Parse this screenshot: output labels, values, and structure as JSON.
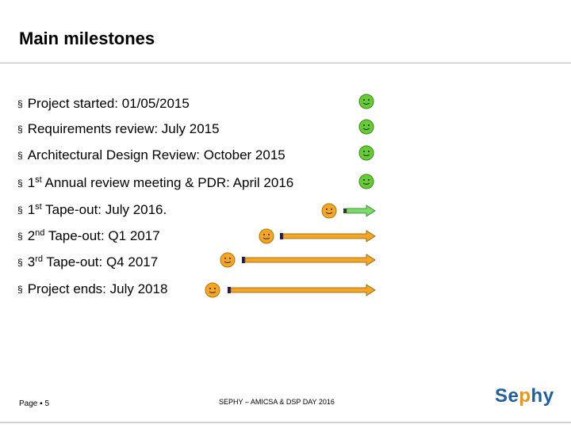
{
  "slide": {
    "title": "Main milestones",
    "bullet_marker": "§",
    "milestones": [
      {
        "text": "Project started: 01/05/2015",
        "status": "done"
      },
      {
        "text": "Requirements review: July 2015",
        "status": "done"
      },
      {
        "text": "Architectural Design Review: October 2015",
        "status": "done"
      },
      {
        "ordinal": "1",
        "suffix": "st",
        "rest": " Annual review meeting & PDR: April 2016",
        "status": "done"
      },
      {
        "ordinal": "1",
        "suffix": "st",
        "rest": " Tape-out: July 2016.",
        "status": "in progress"
      },
      {
        "ordinal": "2",
        "suffix": "nd",
        "rest": " Tape-out:  Q1 2017",
        "status": "planned"
      },
      {
        "ordinal": "3",
        "suffix": "rd",
        "rest": " Tape-out: Q4 2017",
        "status": "planned"
      },
      {
        "text": "Project ends: July 2018",
        "status": "planned"
      }
    ]
  },
  "footer": {
    "page_label": "Page ▪ 5",
    "event": "SEPHY – AMICSA & DSP DAY 2016",
    "logo_text_start": "Se",
    "logo_text_accent": "p",
    "logo_text_end": "hy"
  },
  "colors": {
    "done_smiley": "#66cc33",
    "pending_smiley": "#f5a623",
    "in_progress_arrow": "#77dd66",
    "planned_arrow": "#f5a623",
    "logo_blue": "#1f5f9e"
  }
}
